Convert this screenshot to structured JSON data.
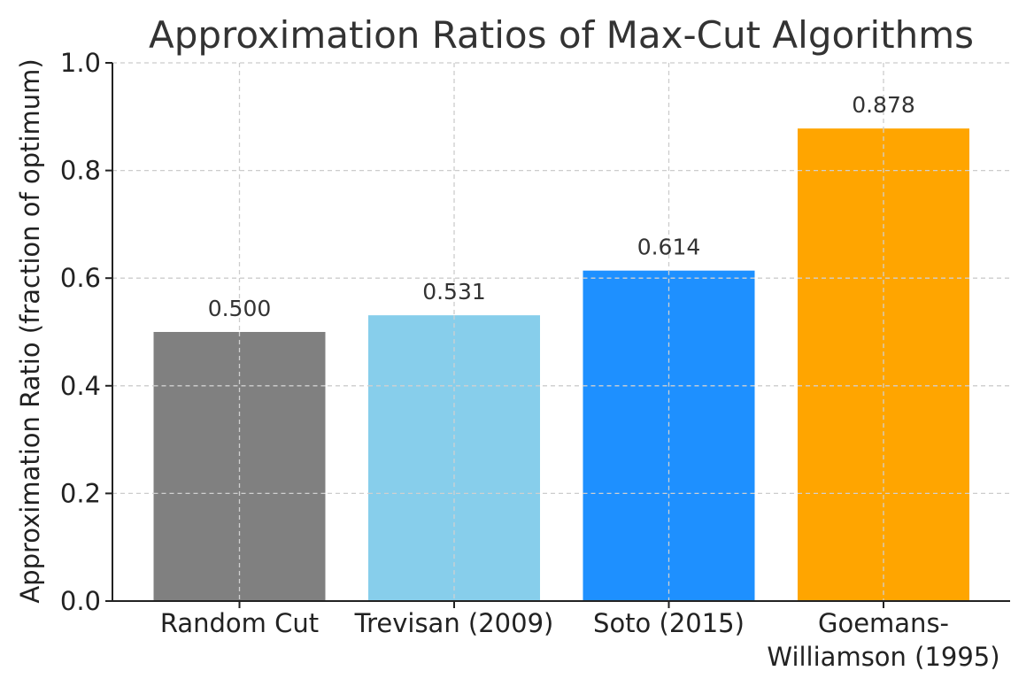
{
  "chart_data": {
    "type": "bar",
    "title": "Approximation Ratios of Max-Cut Algorithms",
    "xlabel": "",
    "ylabel": "Approximation Ratio (fraction of optimum)",
    "categories": [
      [
        "Random Cut"
      ],
      [
        "Trevisan (2009)"
      ],
      [
        "Soto (2015)"
      ],
      [
        "Goemans-",
        "Williamson (1995)"
      ]
    ],
    "values": [
      0.5,
      0.531,
      0.614,
      0.878
    ],
    "value_labels": [
      "0.500",
      "0.531",
      "0.614",
      "0.878"
    ],
    "colors": [
      "#808080",
      "#87CEEB",
      "#1E90FF",
      "#FFA500"
    ],
    "ylim": [
      0,
      1.0
    ],
    "yticks": [
      0.0,
      0.2,
      0.4,
      0.6,
      0.8,
      1.0
    ],
    "ytick_labels": [
      "0.0",
      "0.2",
      "0.4",
      "0.6",
      "0.8",
      "1.0"
    ],
    "grid": true,
    "legend": "none"
  }
}
